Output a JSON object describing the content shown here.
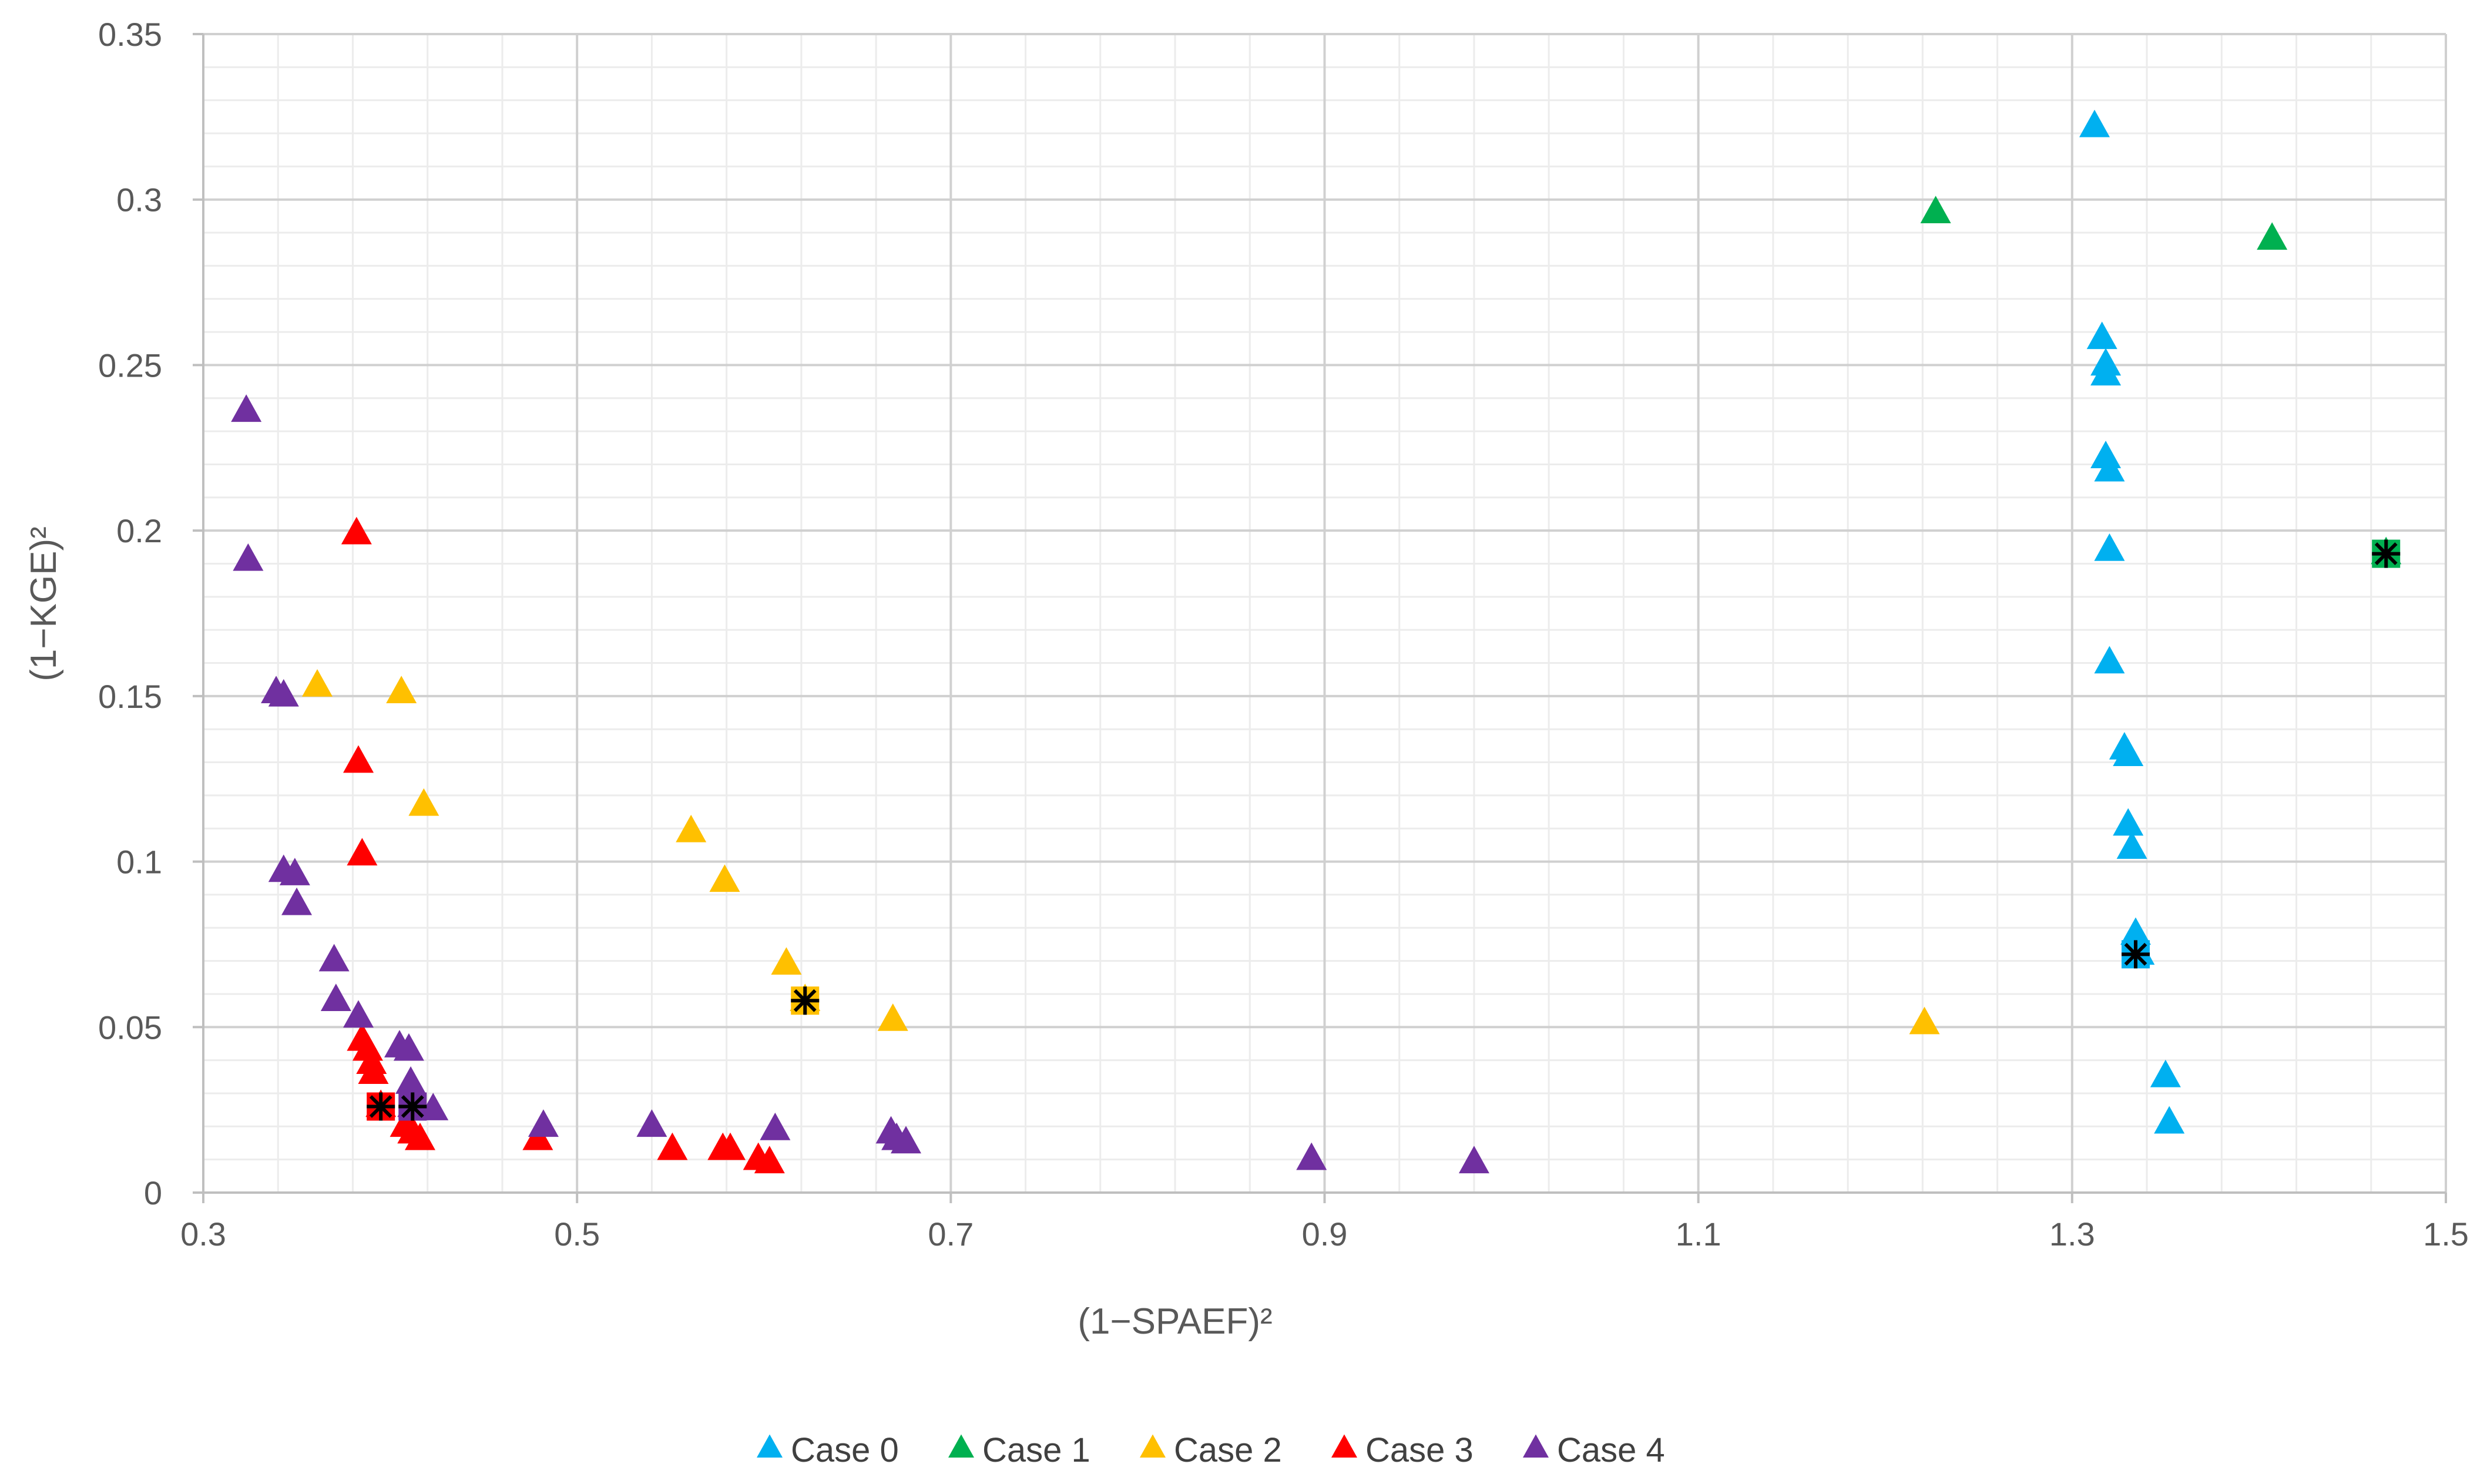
{
  "chart_data": {
    "type": "scatter",
    "title": "",
    "xlabel": "(1−SPAEF)²",
    "ylabel": "(1−KGE)²",
    "xlim": [
      0.3,
      1.5
    ],
    "ylim": [
      0,
      0.35
    ],
    "x_ticks": [
      "0.3",
      "0.5",
      "0.7",
      "0.9",
      "1.1",
      "1.3",
      "1.5"
    ],
    "y_ticks": [
      "0",
      "0.05",
      "0.1",
      "0.15",
      "0.2",
      "0.25",
      "0.3",
      "0.35"
    ],
    "grid": true,
    "legend_position": "bottom",
    "colors": {
      "Case 0": "#00B0F0",
      "Case 1": "#00B050",
      "Case 2": "#FFC000",
      "Case 3": "#FF0000",
      "Case 4": "#7030A0"
    },
    "series": [
      {
        "name": "Case 0",
        "color": "#00B0F0",
        "points": [
          [
            1.312,
            0.322
          ],
          [
            1.316,
            0.258
          ],
          [
            1.318,
            0.25
          ],
          [
            1.318,
            0.247
          ],
          [
            1.318,
            0.222
          ],
          [
            1.32,
            0.218
          ],
          [
            1.32,
            0.194
          ],
          [
            1.32,
            0.16
          ],
          [
            1.328,
            0.134
          ],
          [
            1.33,
            0.132
          ],
          [
            1.33,
            0.111
          ],
          [
            1.332,
            0.104
          ],
          [
            1.334,
            0.078
          ],
          [
            1.336,
            0.072
          ],
          [
            1.35,
            0.035
          ],
          [
            1.352,
            0.021
          ]
        ]
      },
      {
        "name": "Case 1",
        "color": "#00B050",
        "points": [
          [
            1.227,
            0.296
          ],
          [
            1.407,
            0.288
          ],
          [
            1.468,
            0.193
          ]
        ]
      },
      {
        "name": "Case 2",
        "color": "#FFC000",
        "points": [
          [
            0.361,
            0.153
          ],
          [
            0.406,
            0.151
          ],
          [
            0.418,
            0.117
          ],
          [
            0.561,
            0.109
          ],
          [
            0.579,
            0.094
          ],
          [
            0.612,
            0.069
          ],
          [
            0.622,
            0.058
          ],
          [
            0.669,
            0.052
          ],
          [
            1.221,
            0.051
          ]
        ]
      },
      {
        "name": "Case 3",
        "color": "#FF0000",
        "points": [
          [
            0.382,
            0.199
          ],
          [
            0.383,
            0.13
          ],
          [
            0.385,
            0.102
          ],
          [
            0.385,
            0.046
          ],
          [
            0.388,
            0.043
          ],
          [
            0.39,
            0.039
          ],
          [
            0.391,
            0.036
          ],
          [
            0.395,
            0.026
          ],
          [
            0.408,
            0.02
          ],
          [
            0.412,
            0.018
          ],
          [
            0.416,
            0.016
          ],
          [
            0.479,
            0.016
          ],
          [
            0.551,
            0.013
          ],
          [
            0.578,
            0.013
          ],
          [
            0.582,
            0.013
          ],
          [
            0.597,
            0.01
          ],
          [
            0.603,
            0.009
          ]
        ]
      },
      {
        "name": "Case 4",
        "color": "#7030A0",
        "points": [
          [
            0.323,
            0.236
          ],
          [
            0.324,
            0.191
          ],
          [
            0.339,
            0.151
          ],
          [
            0.343,
            0.15
          ],
          [
            0.343,
            0.097
          ],
          [
            0.349,
            0.096
          ],
          [
            0.35,
            0.087
          ],
          [
            0.37,
            0.07
          ],
          [
            0.371,
            0.058
          ],
          [
            0.383,
            0.053
          ],
          [
            0.405,
            0.044
          ],
          [
            0.41,
            0.043
          ],
          [
            0.411,
            0.033
          ],
          [
            0.412,
            0.026
          ],
          [
            0.423,
            0.025
          ],
          [
            0.482,
            0.02
          ],
          [
            0.54,
            0.02
          ],
          [
            0.606,
            0.019
          ],
          [
            0.668,
            0.018
          ],
          [
            0.671,
            0.016
          ],
          [
            0.676,
            0.015
          ],
          [
            0.893,
            0.01
          ],
          [
            0.98,
            0.009
          ]
        ]
      }
    ],
    "highlighted": [
      {
        "series": "Case 0",
        "point": [
          1.334,
          0.072
        ]
      },
      {
        "series": "Case 1",
        "point": [
          1.468,
          0.193
        ]
      },
      {
        "series": "Case 2",
        "point": [
          0.622,
          0.058
        ]
      },
      {
        "series": "Case 3",
        "point": [
          0.395,
          0.026
        ]
      },
      {
        "series": "Case 4",
        "point": [
          0.412,
          0.026
        ]
      }
    ]
  }
}
